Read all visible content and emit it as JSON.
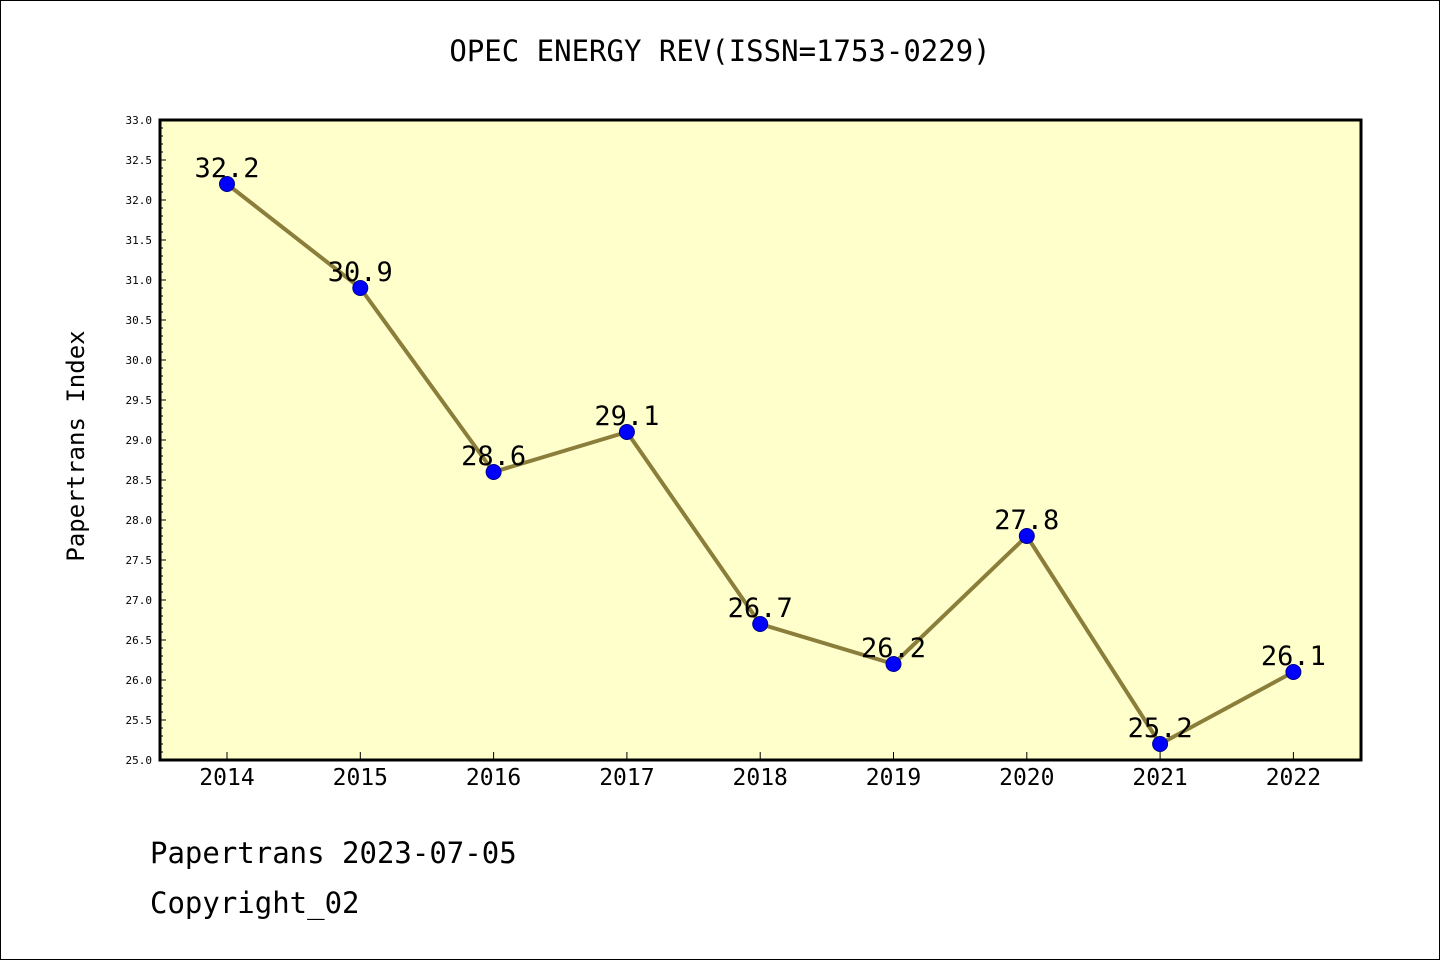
{
  "footer": {
    "line1": "Papertrans 2023-07-05",
    "line2": "Copyright_02"
  },
  "chart_data": {
    "type": "line",
    "title": "OPEC ENERGY REV(ISSN=1753-0229)",
    "xlabel": "",
    "ylabel": "Papertrans Index",
    "categories": [
      "2014",
      "2015",
      "2016",
      "2017",
      "2018",
      "2019",
      "2020",
      "2021",
      "2022"
    ],
    "values": [
      32.2,
      30.9,
      28.6,
      29.1,
      26.7,
      26.2,
      27.8,
      25.2,
      26.1
    ],
    "data_labels": [
      "32.2",
      "30.9",
      "28.6",
      "29.1",
      "26.7",
      "26.2",
      "27.8",
      "25.2",
      "26.1"
    ],
    "ylim": [
      25.0,
      33.0
    ],
    "yticks": [
      "25.0",
      "25.5",
      "26.0",
      "26.5",
      "27.0",
      "27.5",
      "28.0",
      "28.5",
      "29.0",
      "29.5",
      "30.0",
      "30.5",
      "31.0",
      "31.5",
      "32.0",
      "32.5",
      "33.0"
    ],
    "grid": false,
    "colors": {
      "plot_background": "#ffffcc",
      "line": "#8b7d3a",
      "marker": "#0000ff",
      "marker_edge": "#00008b"
    }
  }
}
